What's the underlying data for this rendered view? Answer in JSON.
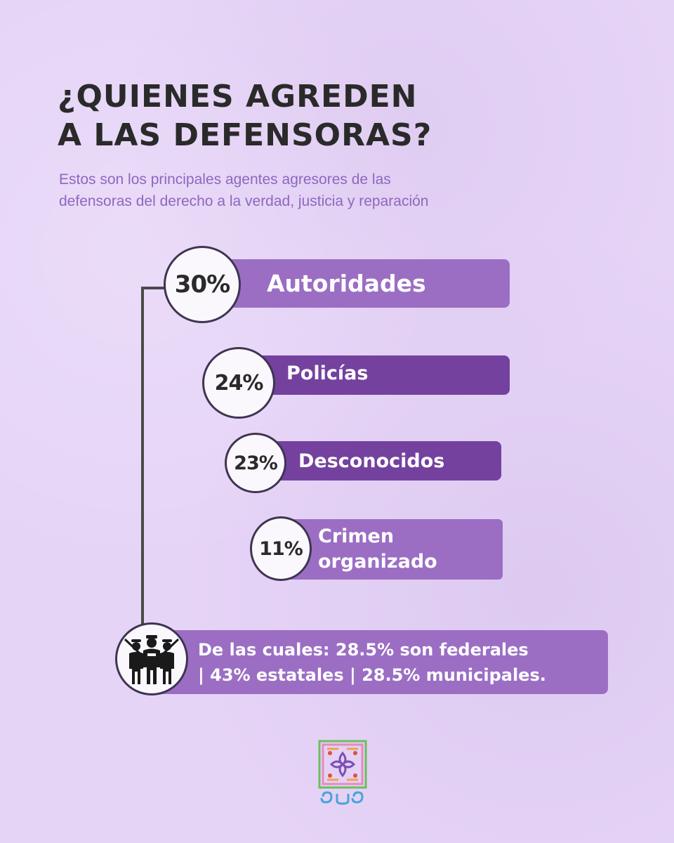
{
  "title": {
    "line1": "¿QUIENES AGREDEN",
    "line2": "A LAS DEFENSORAS?"
  },
  "subtitle": {
    "line1": "Estos son los principales agentes agresores de las",
    "line2": "defensoras del derecho a la verdad, justicia y reparación"
  },
  "items": [
    {
      "percent": "30%",
      "label": "Autoridades"
    },
    {
      "percent": "24%",
      "label": "Policías"
    },
    {
      "percent": "23%",
      "label": "Desconocidos"
    },
    {
      "percent": "11%",
      "label_line1": "Crimen",
      "label_line2": "organizado"
    }
  ],
  "note": {
    "line1": "De las cuales: 28.5% son federales",
    "line2": "| 43% estatales | 28.5% municipales."
  },
  "icons": {
    "authorities": "police-officers-icon",
    "logo": "organization-logo"
  },
  "colors": {
    "background": "#e6d4f7",
    "bar_light": "#9b6ec4",
    "bar_dark": "#74419f",
    "title": "#2a2a2a",
    "subtitle": "#8e67bf"
  }
}
